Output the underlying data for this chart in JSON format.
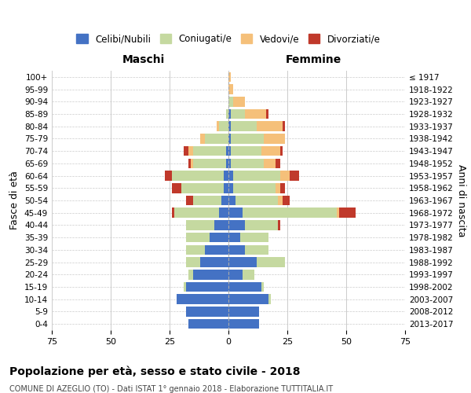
{
  "age_groups": [
    "0-4",
    "5-9",
    "10-14",
    "15-19",
    "20-24",
    "25-29",
    "30-34",
    "35-39",
    "40-44",
    "45-49",
    "50-54",
    "55-59",
    "60-64",
    "65-69",
    "70-74",
    "75-79",
    "80-84",
    "85-89",
    "90-94",
    "95-99",
    "100+"
  ],
  "birth_years": [
    "2013-2017",
    "2008-2012",
    "2003-2007",
    "1998-2002",
    "1993-1997",
    "1988-1992",
    "1983-1987",
    "1978-1982",
    "1973-1977",
    "1968-1972",
    "1963-1967",
    "1958-1962",
    "1953-1957",
    "1948-1952",
    "1943-1947",
    "1938-1942",
    "1933-1937",
    "1928-1932",
    "1923-1927",
    "1918-1922",
    "≤ 1917"
  ],
  "colors": {
    "celibi": "#4472C4",
    "coniugati": "#C5D9A0",
    "vedovi": "#F5C07A",
    "divorziati": "#C0392B"
  },
  "males": {
    "celibi": [
      17,
      18,
      22,
      18,
      15,
      12,
      10,
      8,
      6,
      4,
      3,
      2,
      2,
      1,
      1,
      0,
      0,
      0,
      0,
      0,
      0
    ],
    "coniugati": [
      0,
      0,
      0,
      1,
      2,
      6,
      8,
      10,
      12,
      19,
      12,
      18,
      22,
      14,
      14,
      10,
      4,
      1,
      0,
      0,
      0
    ],
    "vedovi": [
      0,
      0,
      0,
      0,
      0,
      0,
      0,
      0,
      0,
      0,
      0,
      0,
      0,
      1,
      2,
      2,
      1,
      0,
      0,
      0,
      0
    ],
    "divorziati": [
      0,
      0,
      0,
      0,
      0,
      0,
      0,
      0,
      0,
      1,
      3,
      4,
      3,
      1,
      2,
      0,
      0,
      0,
      0,
      0,
      0
    ]
  },
  "females": {
    "celibi": [
      13,
      13,
      17,
      14,
      6,
      12,
      7,
      5,
      7,
      6,
      3,
      2,
      2,
      1,
      1,
      1,
      1,
      1,
      0,
      0,
      0
    ],
    "coniugati": [
      0,
      0,
      1,
      1,
      5,
      12,
      10,
      12,
      14,
      40,
      18,
      18,
      20,
      14,
      13,
      14,
      11,
      6,
      2,
      0,
      0
    ],
    "vedovi": [
      0,
      0,
      0,
      0,
      0,
      0,
      0,
      0,
      0,
      1,
      2,
      2,
      4,
      5,
      8,
      9,
      11,
      9,
      5,
      2,
      1
    ],
    "divorziati": [
      0,
      0,
      0,
      0,
      0,
      0,
      0,
      0,
      1,
      7,
      3,
      2,
      4,
      2,
      1,
      0,
      1,
      1,
      0,
      0,
      0
    ]
  },
  "xlim": 75,
  "title": "Popolazione per età, sesso e stato civile - 2018",
  "subtitle": "COMUNE DI AZEGLIO (TO) - Dati ISTAT 1° gennaio 2018 - Elaborazione TUTTITALIA.IT",
  "ylabel": "Fasce di età",
  "ylabel_right": "Anni di nascita",
  "xlabel_left": "Maschi",
  "xlabel_right": "Femmine",
  "legend_labels": [
    "Celibi/Nubili",
    "Coniugati/e",
    "Vedovi/e",
    "Divorziati/e"
  ],
  "bg_color": "#ffffff",
  "grid_color": "#cccccc"
}
